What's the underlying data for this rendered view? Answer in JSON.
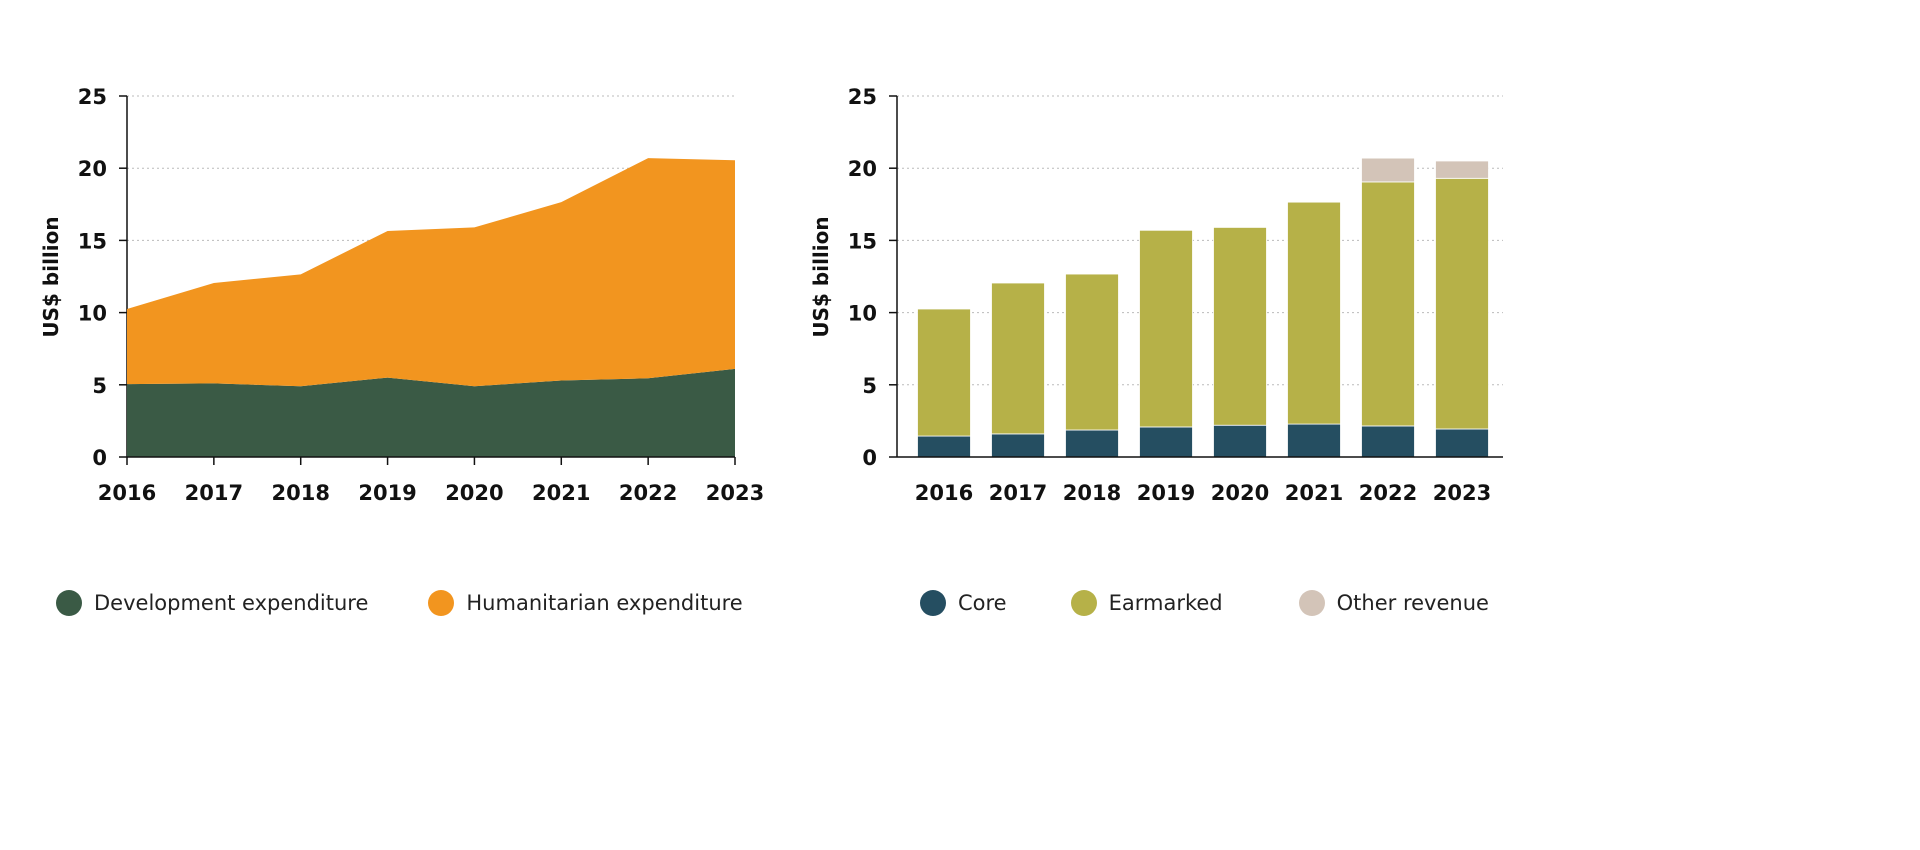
{
  "chart_data": [
    {
      "type": "area",
      "stacked": true,
      "x": [
        "2016",
        "2017",
        "2018",
        "2019",
        "2020",
        "2021",
        "2022",
        "2023"
      ],
      "ylabel": "US$ billion",
      "ylim": [
        0,
        25
      ],
      "yticks": [
        "0",
        "5",
        "10",
        "15",
        "20",
        "25"
      ],
      "grid": true,
      "legend": "bottom",
      "series": [
        {
          "name": "Development expenditure",
          "color": "#3a5a45",
          "values": [
            5.05,
            5.1,
            4.9,
            5.5,
            4.9,
            5.3,
            5.45,
            6.1
          ]
        },
        {
          "name": "Humanitarian expenditure",
          "color": "#f2951f",
          "values": [
            5.2,
            6.95,
            7.75,
            10.15,
            11.0,
            12.35,
            15.25,
            14.45
          ]
        }
      ]
    },
    {
      "type": "bar",
      "stacked": true,
      "categories": [
        "2016",
        "2017",
        "2018",
        "2019",
        "2020",
        "2021",
        "2022",
        "2023"
      ],
      "ylabel": "US$ billion",
      "ylim": [
        0,
        25
      ],
      "yticks": [
        "0",
        "5",
        "10",
        "15",
        "20",
        "25"
      ],
      "grid": true,
      "legend": "bottom",
      "series": [
        {
          "name": "Core",
          "color": "#254e61",
          "values": [
            1.45,
            1.6,
            1.87,
            2.08,
            2.2,
            2.28,
            2.15,
            1.94
          ]
        },
        {
          "name": "Earmarked",
          "color": "#b6b148",
          "values": [
            8.8,
            10.45,
            10.8,
            13.62,
            13.7,
            15.37,
            16.9,
            17.36
          ]
        },
        {
          "name": "Other revenue",
          "color": "#d3c4b8",
          "values": [
            0,
            0,
            0,
            0,
            0,
            0,
            1.65,
            1.2
          ]
        }
      ]
    }
  ]
}
